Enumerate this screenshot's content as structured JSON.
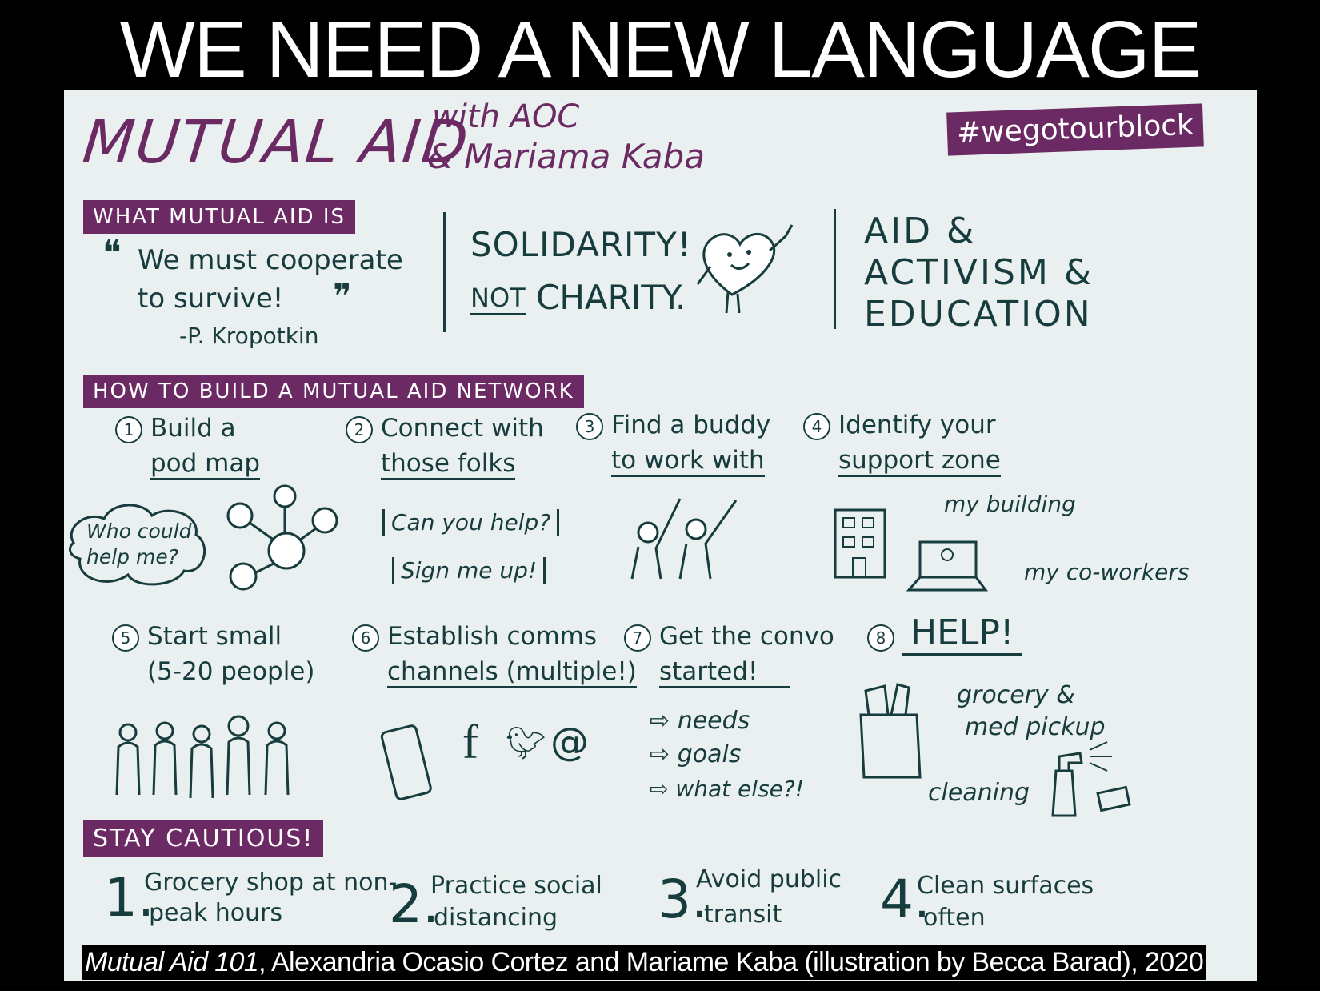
{
  "slide_title": "WE NEED A NEW LANGUAGE",
  "board": {
    "heading_main": "MUTUAL AID",
    "heading_with": "with AOC",
    "heading_names": "& Mariama Kaba",
    "hashtag": "#wegotourblock",
    "what_is": {
      "banner": "WHAT MUTUAL AID IS",
      "quote_line1": "We must cooperate",
      "quote_line2": "to survive!",
      "quote_author": "-P. Kropotkin",
      "solidarity": "SOLIDARITY!",
      "not": "NOT",
      "charity": "CHARITY.",
      "aid": "AID &",
      "activism": "ACTIVISM &",
      "education": "EDUCATION"
    },
    "how_to": {
      "banner": "HOW TO BUILD A MUTUAL AID NETWORK",
      "steps": [
        {
          "num": "1",
          "line1": "Build a",
          "line2": "pod map"
        },
        {
          "num": "2",
          "line1": "Connect with",
          "line2": "those folks"
        },
        {
          "num": "3",
          "line1": "Find a buddy",
          "line2": "to work with"
        },
        {
          "num": "4",
          "line1": "Identify your",
          "line2": "support zone"
        },
        {
          "num": "5",
          "line1": "Start small",
          "line2": "(5-20 people)"
        },
        {
          "num": "6",
          "line1": "Establish comms",
          "line2": "channels (multiple!)"
        },
        {
          "num": "7",
          "line1": "Get the convo",
          "line2": "started!"
        },
        {
          "num": "8",
          "line1": "HELP!",
          "line2": ""
        }
      ],
      "cloud_text": "Who could help me?",
      "can_you_help": "Can you help?",
      "sign_me_up": "Sign me up!",
      "my_building": "my building",
      "my_coworkers": "my co-workers",
      "convo_items": [
        "needs",
        "goals",
        "what else?!"
      ],
      "grocery": "grocery &",
      "med_pickup": "med pickup",
      "cleaning": "cleaning"
    },
    "caution": {
      "banner": "STAY CAUTIOUS!",
      "items": [
        {
          "num": "1.",
          "line1": "Grocery shop at non-",
          "line2": "peak hours"
        },
        {
          "num": "2.",
          "line1": "Practice social",
          "line2": "distancing"
        },
        {
          "num": "3.",
          "line1": "Avoid public",
          "line2": "transit"
        },
        {
          "num": "4.",
          "line1": "Clean surfaces",
          "line2": "often"
        }
      ]
    }
  },
  "caption": {
    "italic": "Mutual Aid 101",
    "rest": ", Alexandria Ocasio Cortez and Mariame Kaba (illustration by Becca Barad), 2020"
  },
  "colors": {
    "purple": "#6b2a63",
    "ink": "#173c3e",
    "paper": "#e9f0ef"
  }
}
